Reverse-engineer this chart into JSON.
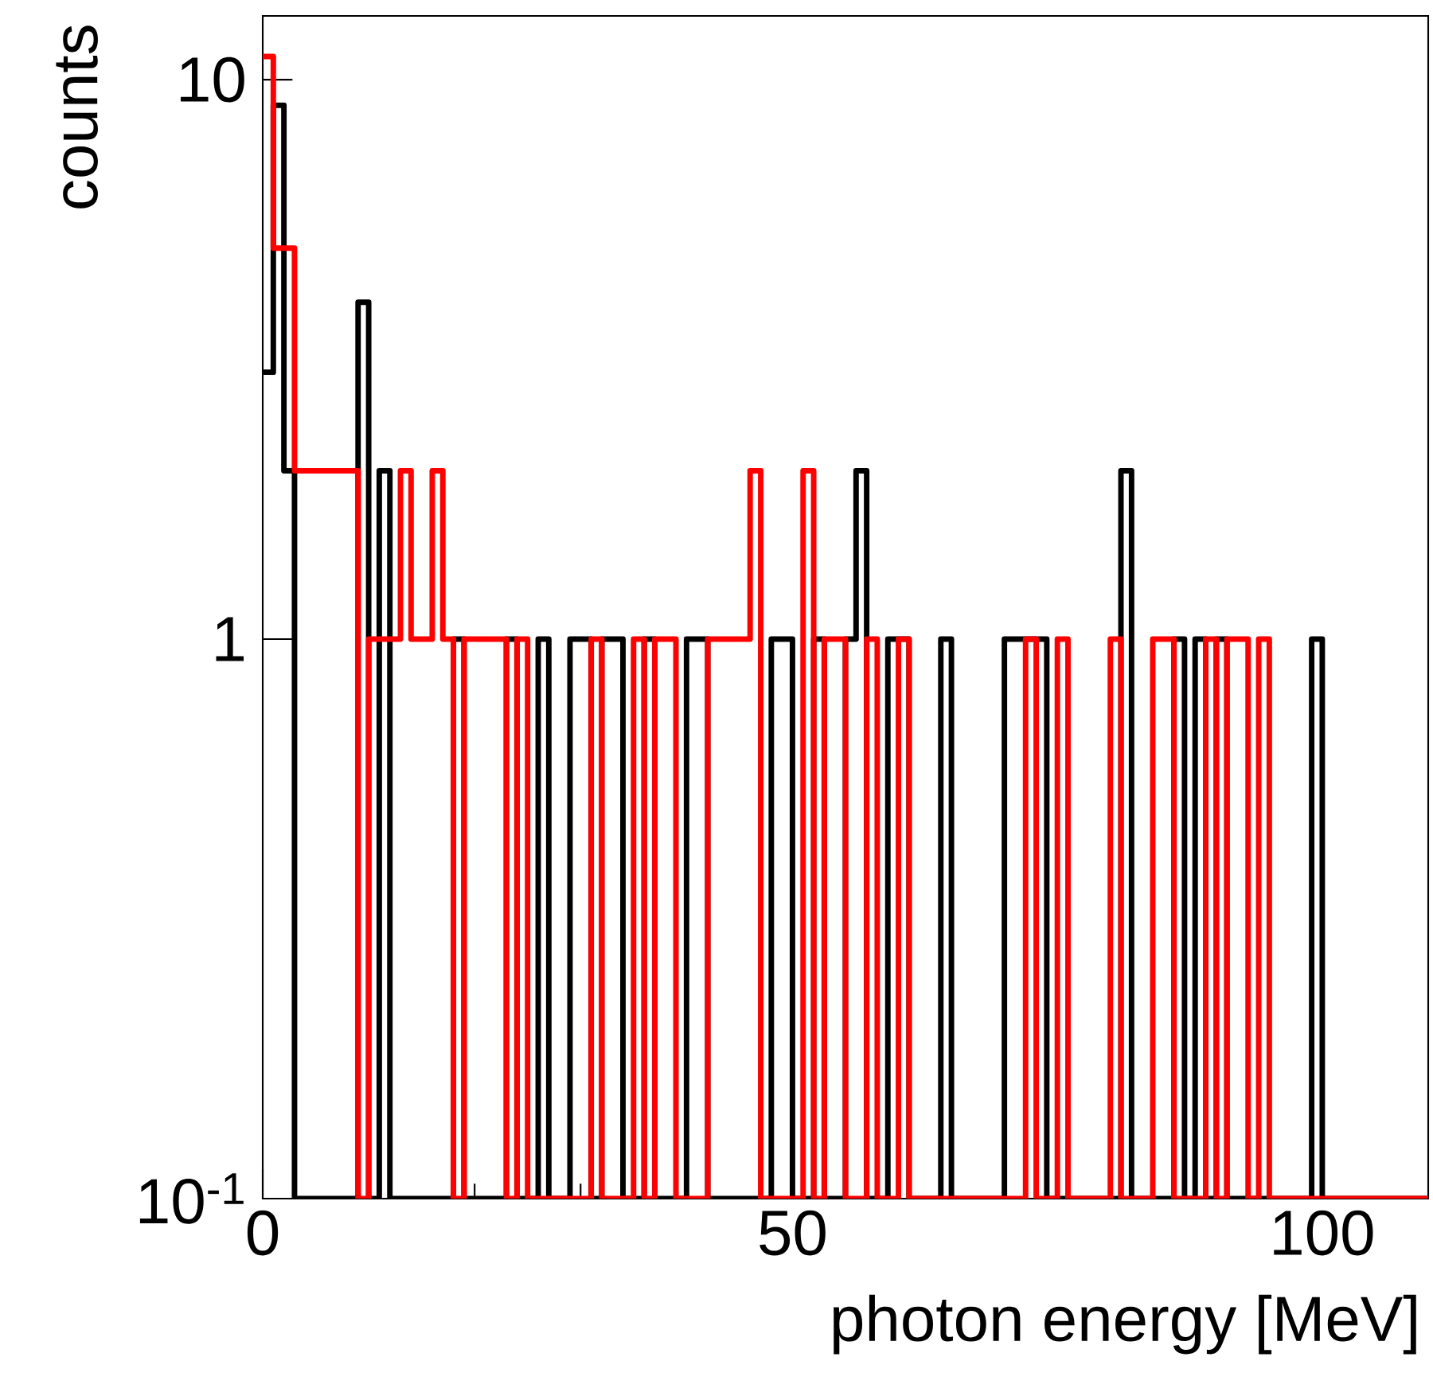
{
  "chart_data": {
    "type": "histogram",
    "xlabel": "photon energy [MeV]",
    "ylabel": "counts",
    "log": "y",
    "xlim": [
      0,
      110
    ],
    "xticks": [
      0,
      50,
      100
    ],
    "ylim": [
      0.1,
      13
    ],
    "yticks": [
      {
        "value": 0.1,
        "label": "10$^{-1}$"
      },
      1,
      10
    ],
    "bins": [
      0,
      1,
      2,
      3,
      4,
      5,
      6,
      7,
      8,
      9,
      10,
      11,
      12,
      13,
      14,
      15,
      16,
      17,
      18,
      19,
      20,
      21,
      22,
      23,
      24,
      25,
      26,
      27,
      28,
      29,
      30,
      31,
      32,
      33,
      34,
      35,
      36,
      37,
      38,
      39,
      40,
      41,
      42,
      43,
      44,
      45,
      46,
      47,
      48,
      49,
      50,
      51,
      52,
      53,
      54,
      55,
      56,
      57,
      58,
      59,
      60,
      61,
      62,
      63,
      64,
      65,
      66,
      67,
      68,
      69,
      70,
      71,
      72,
      73,
      74,
      75,
      76,
      77,
      78,
      79,
      80,
      81,
      82,
      83,
      84,
      85,
      86,
      87,
      88,
      89,
      90,
      91,
      92,
      93,
      94,
      95,
      96,
      97,
      98,
      99,
      100,
      101,
      102,
      103,
      104,
      105,
      106,
      107,
      108,
      109,
      110
    ],
    "series": [
      {
        "color": "#000000",
        "values": [
          3,
          9,
          2,
          null,
          null,
          null,
          null,
          null,
          null,
          4,
          null,
          2,
          null,
          null,
          null,
          null,
          null,
          null,
          1,
          null,
          null,
          null,
          null,
          1,
          null,
          null,
          1,
          null,
          null,
          1,
          1,
          null,
          1,
          1,
          null,
          null,
          1,
          null,
          null,
          null,
          1,
          1,
          null,
          null,
          null,
          null,
          null,
          null,
          1,
          1,
          null,
          null,
          1,
          null,
          null,
          1,
          2,
          null,
          null,
          1,
          1,
          null,
          null,
          null,
          1,
          null,
          null,
          null,
          null,
          null,
          1,
          1,
          1,
          1,
          null,
          null,
          null,
          null,
          null,
          null,
          null,
          2,
          null,
          null,
          null,
          null,
          1,
          null,
          1,
          null,
          1,
          null,
          null,
          null,
          null,
          null,
          null,
          null,
          null,
          1,
          null,
          null,
          null,
          null,
          null,
          null,
          null,
          null,
          null,
          null
        ]
      },
      {
        "color": "#ff0000",
        "values": [
          11,
          5,
          5,
          2,
          2,
          2,
          2,
          2,
          2,
          null,
          1,
          1,
          1,
          2,
          1,
          1,
          2,
          1,
          null,
          1,
          1,
          1,
          1,
          null,
          1,
          null,
          null,
          null,
          null,
          null,
          null,
          1,
          null,
          null,
          null,
          1,
          null,
          1,
          1,
          null,
          null,
          null,
          1,
          1,
          1,
          1,
          2,
          null,
          null,
          null,
          null,
          2,
          null,
          1,
          1,
          null,
          null,
          1,
          null,
          null,
          1,
          null,
          null,
          null,
          null,
          null,
          null,
          null,
          null,
          null,
          null,
          null,
          1,
          null,
          null,
          1,
          null,
          null,
          null,
          null,
          1,
          null,
          null,
          null,
          1,
          1,
          null,
          null,
          null,
          1,
          null,
          1,
          1,
          null,
          1,
          null,
          null,
          null,
          null,
          null,
          null,
          null,
          null,
          null,
          null,
          null,
          null,
          null,
          null,
          null
        ]
      }
    ]
  }
}
